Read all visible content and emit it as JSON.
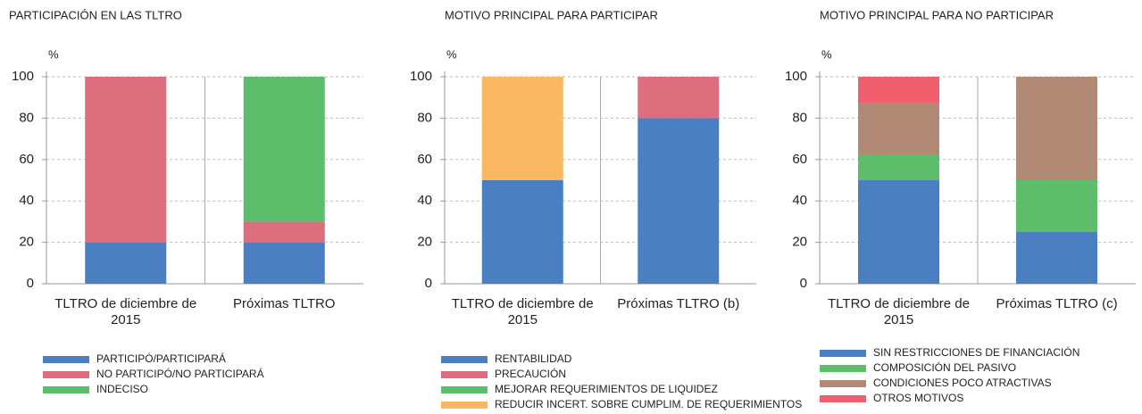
{
  "chart_data": [
    {
      "type": "bar",
      "title": "PARTICIPACIÓN EN LAS TLTRO",
      "y_label": "%",
      "categories": [
        "TLTRO de diciembre de 2015",
        "Próximas TLTRO"
      ],
      "series": [
        {
          "name": "PARTICIPÓ/PARTICIPARÁ",
          "color": "#4a7fc1",
          "values": [
            20,
            20
          ]
        },
        {
          "name": "NO PARTICIPÓ/NO PARTICIPARÁ",
          "color": "#dc6e7e",
          "values": [
            80,
            10
          ]
        },
        {
          "name": "INDECISO",
          "color": "#5cbd6a",
          "values": [
            0,
            70
          ]
        }
      ],
      "stacked": true,
      "ylim": [
        0,
        100
      ],
      "yticks": [
        0,
        20,
        40,
        60,
        80,
        100
      ],
      "grid": true
    },
    {
      "type": "bar",
      "title": "MOTIVO PRINCIPAL PARA PARTICIPAR",
      "y_label": "%",
      "categories": [
        "TLTRO de diciembre de 2015",
        "Próximas TLTRO (b)"
      ],
      "series": [
        {
          "name": "RENTABILIDAD",
          "color": "#4a7fc1",
          "values": [
            50,
            80
          ]
        },
        {
          "name": "PRECAUCIÓN",
          "color": "#dc6e7e",
          "values": [
            0,
            20
          ]
        },
        {
          "name": "MEJORAR REQUERIMIENTOS DE LIQUIDEZ",
          "color": "#5cbd6a",
          "values": [
            0,
            0
          ]
        },
        {
          "name": "REDUCIR INCERT. SOBRE CUMPLIM. DE REQUERIMIENTOS",
          "color": "#fbb862",
          "values": [
            50,
            0
          ]
        }
      ],
      "stacked": true,
      "ylim": [
        0,
        100
      ],
      "yticks": [
        0,
        20,
        40,
        60,
        80,
        100
      ],
      "grid": true
    },
    {
      "type": "bar",
      "title": "MOTIVO PRINCIPAL PARA NO PARTICIPAR",
      "y_label": "%",
      "categories": [
        "TLTRO de diciembre de 2015",
        "Próximas TLTRO (c)"
      ],
      "series": [
        {
          "name": "SIN RESTRICCIONES DE FINANCIACIÓN",
          "color": "#4a7fc1",
          "values": [
            50,
            25
          ]
        },
        {
          "name": "COMPOSICIÓN DEL PASIVO",
          "color": "#5cbd6a",
          "values": [
            12.5,
            25
          ]
        },
        {
          "name": "CONDICIONES POCO ATRACTIVAS",
          "color": "#b08a74",
          "values": [
            25,
            50
          ]
        },
        {
          "name": "OTROS MOTIVOS",
          "color": "#ef5f6e",
          "values": [
            12.5,
            0
          ]
        }
      ],
      "stacked": true,
      "ylim": [
        0,
        100
      ],
      "yticks": [
        0,
        20,
        40,
        60,
        80,
        100
      ],
      "grid": true
    }
  ]
}
